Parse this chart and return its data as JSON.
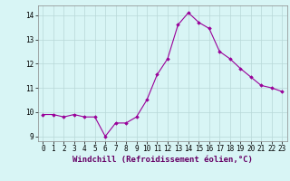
{
  "x": [
    0,
    1,
    2,
    3,
    4,
    5,
    6,
    7,
    8,
    9,
    10,
    11,
    12,
    13,
    14,
    15,
    16,
    17,
    18,
    19,
    20,
    21,
    22,
    23
  ],
  "y": [
    9.9,
    9.9,
    9.8,
    9.9,
    9.8,
    9.8,
    9.0,
    9.55,
    9.55,
    9.8,
    10.5,
    11.55,
    12.2,
    13.6,
    14.1,
    13.7,
    13.45,
    12.5,
    12.2,
    11.8,
    11.45,
    11.1,
    11.0,
    10.85
  ],
  "line_color": "#990099",
  "marker": "D",
  "marker_size": 1.8,
  "bg_color": "#d8f5f5",
  "grid_color": "#b8d8d8",
  "xlabel": "Windchill (Refroidissement éolien,°C)",
  "xlabel_fontsize": 6.5,
  "tick_fontsize": 5.5,
  "ylim": [
    8.8,
    14.4
  ],
  "xlim": [
    -0.5,
    23.5
  ],
  "yticks": [
    9,
    10,
    11,
    12,
    13,
    14
  ],
  "xticks": [
    0,
    1,
    2,
    3,
    4,
    5,
    6,
    7,
    8,
    9,
    10,
    11,
    12,
    13,
    14,
    15,
    16,
    17,
    18,
    19,
    20,
    21,
    22,
    23
  ]
}
